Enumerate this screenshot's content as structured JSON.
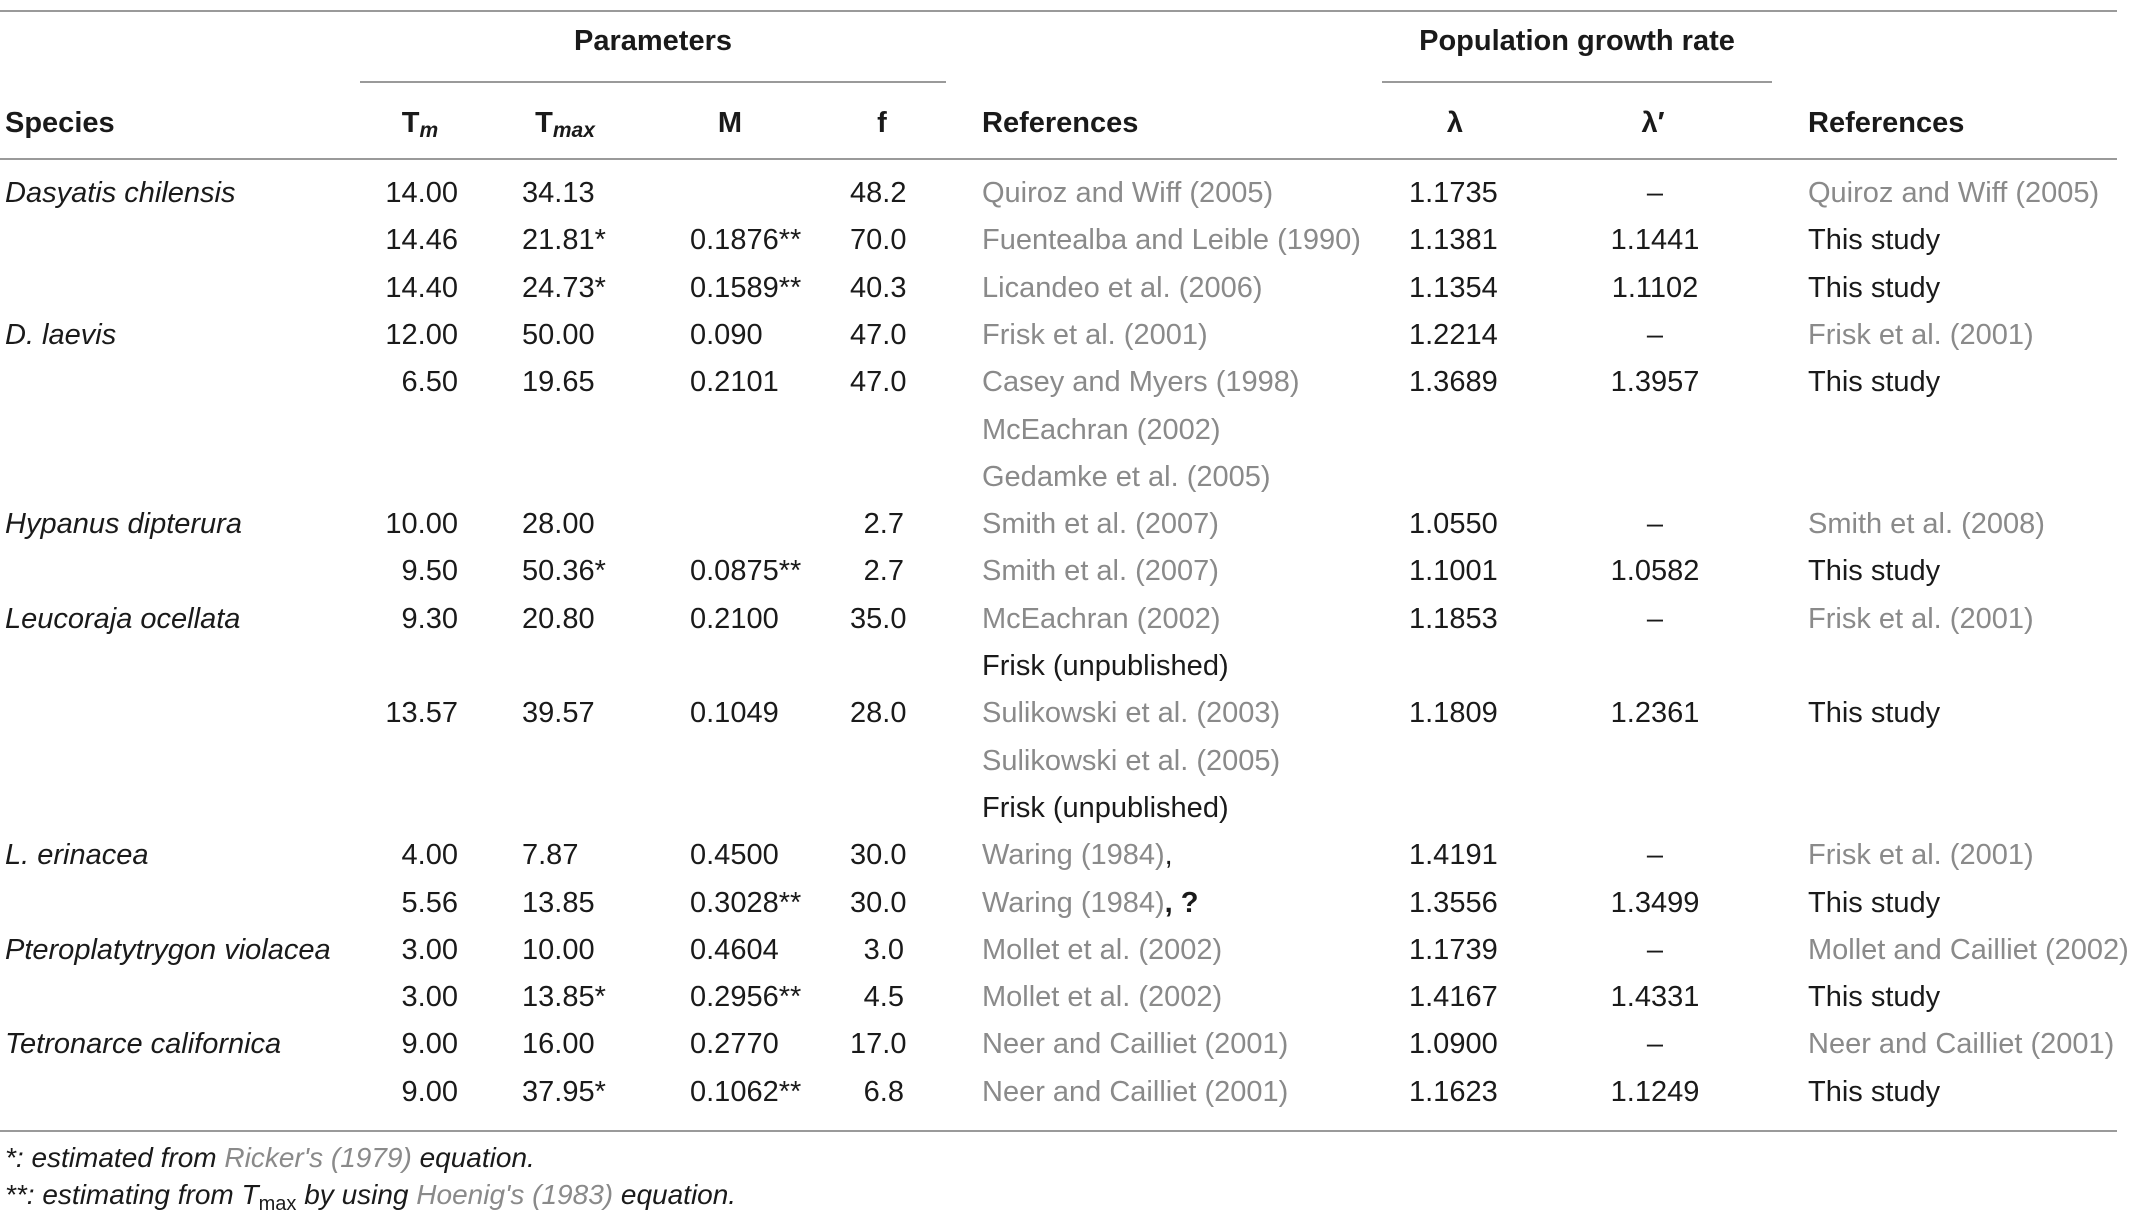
{
  "header": {
    "parameters": "Parameters",
    "population_growth_rate": "Population growth rate",
    "species": "Species",
    "tm_base": "T",
    "tm_sub": "m",
    "tmax_base": "T",
    "tmax_sub": "max",
    "m": "M",
    "f": "f",
    "references_1": "References",
    "lambda": "λ",
    "lambda_prime": "λ′",
    "references_2": "References"
  },
  "rows": [
    {
      "species": "Dasyatis chilensis",
      "tm": "14.00",
      "tmax": "34.13",
      "m": "",
      "f": "48.2",
      "ref1": "Quiroz and Wiff (2005)",
      "ref1_extra": "",
      "lambda": "1.1735",
      "lambda_prime": "–",
      "ref2": "Quiroz and Wiff (2005)"
    },
    {
      "species": "",
      "tm": "14.46",
      "tmax": "21.81*",
      "m": "0.1876**",
      "f": "70.0",
      "ref1": "Fuentealba and Leible (1990)",
      "ref1_extra": "",
      "lambda": "1.1381",
      "lambda_prime": "1.1441",
      "ref2": "This study"
    },
    {
      "species": "",
      "tm": "14.40",
      "tmax": "24.73*",
      "m": "0.1589**",
      "f": "40.3",
      "ref1": "Licandeo et al. (2006)",
      "ref1_extra": "",
      "lambda": "1.1354",
      "lambda_prime": "1.1102",
      "ref2": "This study"
    },
    {
      "species": "D. laevis",
      "tm": "12.00",
      "tmax": "50.00",
      "m": "0.090",
      "f": "47.0",
      "ref1": "Frisk et al. (2001)",
      "ref1_extra": "",
      "lambda": "1.2214",
      "lambda_prime": "–",
      "ref2": "Frisk et al. (2001)"
    },
    {
      "species": "",
      "tm": "6.50",
      "tmax": "19.65",
      "m": "0.2101",
      "f": "47.0",
      "ref1": "Casey and Myers (1998)",
      "ref1_extra": "",
      "lambda": "1.3689",
      "lambda_prime": "1.3957",
      "ref2": "This study"
    },
    {
      "species": "",
      "tm": "",
      "tmax": "",
      "m": "",
      "f": "",
      "ref1": "McEachran (2002)",
      "ref1_extra": "",
      "lambda": "",
      "lambda_prime": "",
      "ref2": ""
    },
    {
      "species": "",
      "tm": "",
      "tmax": "",
      "m": "",
      "f": "",
      "ref1": "Gedamke et al. (2005)",
      "ref1_extra": "",
      "lambda": "",
      "lambda_prime": "",
      "ref2": ""
    },
    {
      "species": "Hypanus dipterura",
      "tm": "10.00",
      "tmax": "28.00",
      "m": "",
      "f": "2.7",
      "ref1": "Smith et al. (2007)",
      "ref1_extra": "",
      "lambda": "1.0550",
      "lambda_prime": "–",
      "ref2": "Smith et al. (2008)"
    },
    {
      "species": "",
      "tm": "9.50",
      "tmax": "50.36*",
      "m": "0.0875**",
      "f": "2.7",
      "ref1": "Smith et al. (2007)",
      "ref1_extra": "",
      "lambda": "1.1001",
      "lambda_prime": "1.0582",
      "ref2": "This study"
    },
    {
      "species": "Leucoraja ocellata",
      "tm": "9.30",
      "tmax": "20.80",
      "m": "0.2100",
      "f": "35.0",
      "ref1": "McEachran (2002)",
      "ref1_extra": "",
      "lambda": "1.1853",
      "lambda_prime": "–",
      "ref2": "Frisk et al. (2001)"
    },
    {
      "species": "",
      "tm": "",
      "tmax": "",
      "m": "",
      "f": "",
      "ref1": "Frisk (unpublished)",
      "ref1_extra": "",
      "lambda": "",
      "lambda_prime": "",
      "ref2": ""
    },
    {
      "species": "",
      "tm": "13.57",
      "tmax": "39.57",
      "m": "0.1049",
      "f": "28.0",
      "ref1": "Sulikowski et al. (2003)",
      "ref1_extra": "",
      "lambda": "1.1809",
      "lambda_prime": "1.2361",
      "ref2": "This study"
    },
    {
      "species": "",
      "tm": "",
      "tmax": "",
      "m": "",
      "f": "",
      "ref1": "Sulikowski et al. (2005)",
      "ref1_extra": "",
      "lambda": "",
      "lambda_prime": "",
      "ref2": ""
    },
    {
      "species": "",
      "tm": "",
      "tmax": "",
      "m": "",
      "f": "",
      "ref1": "Frisk (unpublished)",
      "ref1_extra": "",
      "lambda": "",
      "lambda_prime": "",
      "ref2": ""
    },
    {
      "species": "L. erinacea",
      "tm": "4.00",
      "tmax": "7.87",
      "m": "0.4500",
      "f": "30.0",
      "ref1": "Waring (1984)",
      "ref1_extra": ",",
      "lambda": "1.4191",
      "lambda_prime": "–",
      "ref2": "Frisk et al. (2001)"
    },
    {
      "species": "",
      "tm": "5.56",
      "tmax": "13.85",
      "m": "0.3028**",
      "f": "30.0",
      "ref1": "Waring (1984)",
      "ref1_extra": ", ?",
      "lambda": "1.3556",
      "lambda_prime": "1.3499",
      "ref2": "This study"
    },
    {
      "species": "Pteroplatytrygon violacea",
      "tm": "3.00",
      "tmax": "10.00",
      "m": "0.4604",
      "f": "3.0",
      "ref1": "Mollet et al. (2002)",
      "ref1_extra": "",
      "lambda": "1.1739",
      "lambda_prime": "–",
      "ref2": "Mollet and Cailliet (2002)"
    },
    {
      "species": "",
      "tm": "3.00",
      "tmax": "13.85*",
      "m": "0.2956**",
      "f": "4.5",
      "ref1": "Mollet et al. (2002)",
      "ref1_extra": "",
      "lambda": "1.4167",
      "lambda_prime": "1.4331",
      "ref2": "This study"
    },
    {
      "species": "Tetronarce californica",
      "tm": "9.00",
      "tmax": "16.00",
      "m": "0.2770",
      "f": "17.0",
      "ref1": "Neer and Cailliet (2001)",
      "ref1_extra": "",
      "lambda": "1.0900",
      "lambda_prime": "–",
      "ref2": "Neer and Cailliet (2001)"
    },
    {
      "species": "",
      "tm": "9.00",
      "tmax": "37.95*",
      "m": "0.1062**",
      "f": "6.8",
      "ref1": "Neer and Cailliet (2001)",
      "ref1_extra": "",
      "lambda": "1.1623",
      "lambda_prime": "1.1249",
      "ref2": "This study"
    }
  ],
  "footnotes": {
    "note1_prefix": "*: estimated from ",
    "note1_link": "Ricker's (1979)",
    "note1_suffix": " equation.",
    "note2_prefix": "**: estimating from T",
    "note2_sub": "max",
    "note2_mid": " by using ",
    "note2_link": "Hoenig's (1983)",
    "note2_suffix": " equation."
  },
  "colors": {
    "text": "#1a1a1a",
    "reference_link": "#8a8a8a",
    "rule": "#9a9a9a"
  }
}
